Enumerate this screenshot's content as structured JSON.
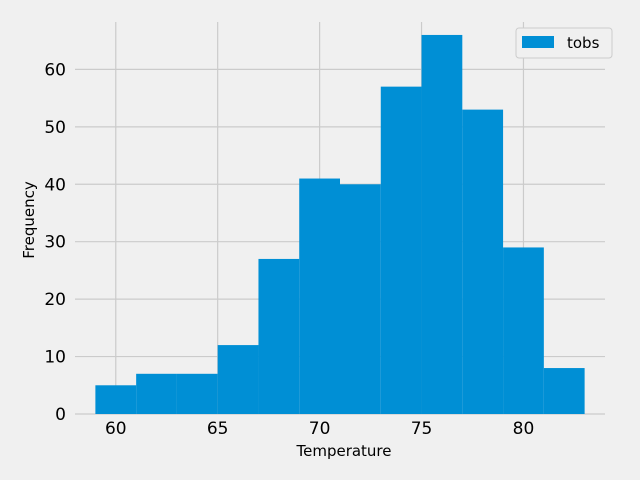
{
  "chart_data": {
    "type": "bar",
    "style": "histogram",
    "title": "",
    "xlabel": "Temperature",
    "ylabel": "Frequency",
    "bin_edges": [
      59.0,
      61.0,
      63.0,
      65.0,
      67.0,
      69.0,
      71.0,
      73.0,
      75.0,
      77.0,
      79.0,
      81.0,
      83.0
    ],
    "series": [
      {
        "name": "tobs",
        "values": [
          5,
          7,
          7,
          12,
          27,
          41,
          40,
          57,
          66,
          53,
          29,
          8
        ]
      }
    ],
    "xlim": [
      58.0,
      84.0
    ],
    "ylim": [
      0,
      69.3
    ],
    "xticks": [
      60,
      65,
      70,
      75,
      80
    ],
    "yticks": [
      0,
      10,
      20,
      30,
      40,
      50,
      60
    ],
    "grid": true,
    "legend_position": "top-right",
    "colors": {
      "bar": "#008fd5",
      "background": "#f0f0f0",
      "grid": "#cbcbcb"
    }
  }
}
